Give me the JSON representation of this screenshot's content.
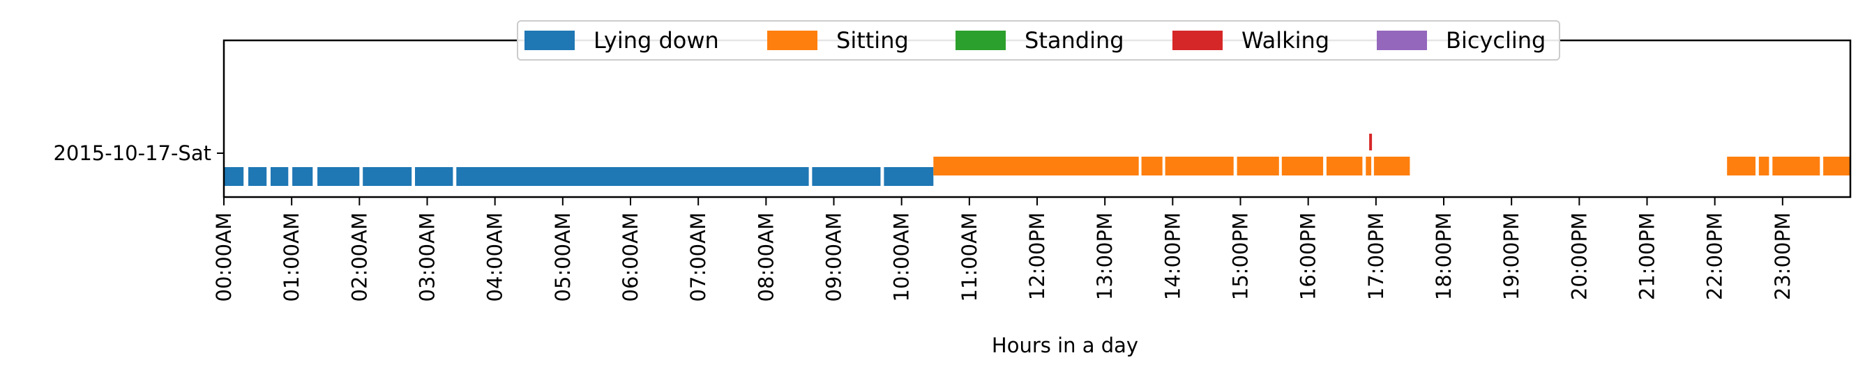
{
  "chart_data": {
    "type": "timeline",
    "xlabel": "Hours in a day",
    "ylabel": "",
    "xlim": [
      0,
      24
    ],
    "x_ticks": [
      {
        "value": 0,
        "label": "00:00AM"
      },
      {
        "value": 1,
        "label": "01:00AM"
      },
      {
        "value": 2,
        "label": "02:00AM"
      },
      {
        "value": 3,
        "label": "03:00AM"
      },
      {
        "value": 4,
        "label": "04:00AM"
      },
      {
        "value": 5,
        "label": "05:00AM"
      },
      {
        "value": 6,
        "label": "06:00AM"
      },
      {
        "value": 7,
        "label": "07:00AM"
      },
      {
        "value": 8,
        "label": "08:00AM"
      },
      {
        "value": 9,
        "label": "09:00AM"
      },
      {
        "value": 10,
        "label": "10:00AM"
      },
      {
        "value": 11,
        "label": "11:00AM"
      },
      {
        "value": 12,
        "label": "12:00PM"
      },
      {
        "value": 13,
        "label": "13:00PM"
      },
      {
        "value": 14,
        "label": "14:00PM"
      },
      {
        "value": 15,
        "label": "15:00PM"
      },
      {
        "value": 16,
        "label": "16:00PM"
      },
      {
        "value": 17,
        "label": "17:00PM"
      },
      {
        "value": 18,
        "label": "18:00PM"
      },
      {
        "value": 19,
        "label": "19:00PM"
      },
      {
        "value": 20,
        "label": "20:00PM"
      },
      {
        "value": 21,
        "label": "21:00PM"
      },
      {
        "value": 22,
        "label": "22:00PM"
      },
      {
        "value": 23,
        "label": "23:00PM"
      }
    ],
    "rows": [
      {
        "label": "2015-10-17-Sat"
      }
    ],
    "legend": {
      "placement": "top-center",
      "entries": [
        {
          "name": "Lying down",
          "color": "#1f77b4"
        },
        {
          "name": "Sitting",
          "color": "#ff7f0e"
        },
        {
          "name": "Standing",
          "color": "#2ca02c"
        },
        {
          "name": "Walking",
          "color": "#d62728"
        },
        {
          "name": "Bicycling",
          "color": "#9467bd"
        }
      ]
    },
    "series": [
      {
        "name": "Lying down",
        "color": "#1f77b4",
        "segments": [
          [
            0.0,
            0.29
          ],
          [
            0.36,
            0.63
          ],
          [
            0.69,
            0.95
          ],
          [
            1.01,
            1.31
          ],
          [
            1.38,
            2.0
          ],
          [
            2.05,
            2.77
          ],
          [
            2.82,
            3.38
          ],
          [
            3.43,
            8.63
          ],
          [
            8.68,
            9.69
          ],
          [
            9.74,
            10.47
          ]
        ]
      },
      {
        "name": "Sitting",
        "color": "#ff7f0e",
        "segments": [
          [
            10.47,
            13.5
          ],
          [
            13.54,
            13.85
          ],
          [
            13.89,
            14.9
          ],
          [
            14.95,
            15.57
          ],
          [
            15.61,
            16.22
          ],
          [
            16.27,
            16.8
          ],
          [
            16.85,
            16.93
          ],
          [
            16.97,
            17.5
          ],
          [
            22.18,
            22.6
          ],
          [
            22.65,
            22.8
          ],
          [
            22.85,
            23.55
          ],
          [
            23.6,
            23.99
          ]
        ]
      },
      {
        "name": "Walking",
        "color": "#d62728",
        "marks": [
          16.92
        ]
      },
      {
        "name": "Standing",
        "color": "#2ca02c",
        "segments": []
      },
      {
        "name": "Bicycling",
        "color": "#9467bd",
        "segments": []
      }
    ]
  }
}
